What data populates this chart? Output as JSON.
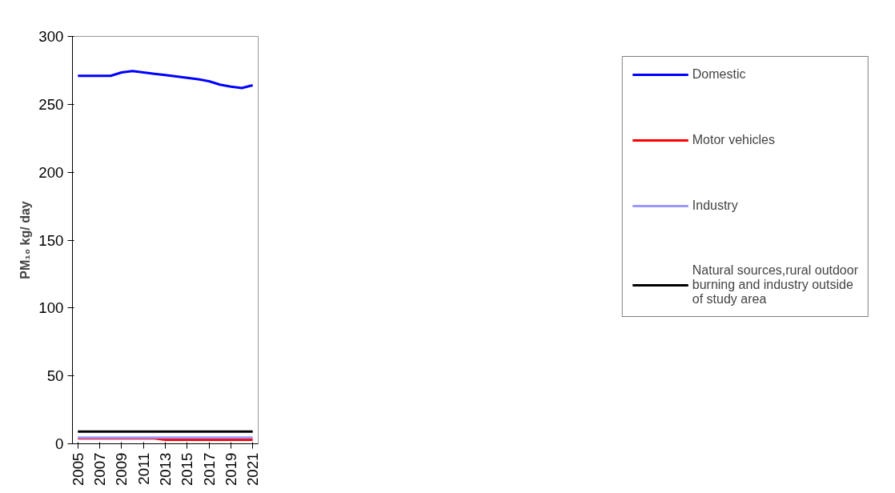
{
  "chart_data": {
    "type": "line",
    "ylabel": "PM₁₀ kg/ day",
    "categories": [
      "2005",
      null,
      "2007",
      null,
      "2009",
      null,
      "2011",
      null,
      "2013",
      null,
      "2015",
      null,
      "2017",
      null,
      "2019",
      null,
      "2021"
    ],
    "series": [
      {
        "name": "Domestic",
        "color": "#0000ff",
        "values": [
          271,
          271,
          271,
          271,
          273.5,
          274.5,
          273.5,
          272.5,
          271.5,
          270.5,
          269.5,
          268.5,
          267,
          264.5,
          263,
          262,
          264
        ]
      },
      {
        "name": "Motor vehicles",
        "color": "#ff0000",
        "values": [
          4,
          4,
          4,
          4,
          4,
          4,
          4,
          4,
          3,
          3,
          3,
          3,
          3,
          3,
          3,
          3,
          3
        ]
      },
      {
        "name": "Industry",
        "color": "#9999ff",
        "values": [
          4.5,
          4.5,
          4.5,
          4.5,
          4.5,
          4.5,
          4.5,
          4.5,
          4.5,
          4.5,
          4.5,
          4.5,
          4.5,
          4.5,
          4.5,
          4.5,
          4.5
        ]
      },
      {
        "name": "Natural sources,rural outdoor burning and industry outside of study area",
        "color": "#000000",
        "values": [
          9,
          9,
          9,
          9,
          9,
          9,
          9,
          9,
          9,
          9,
          9,
          9,
          9,
          9,
          9,
          9,
          9
        ]
      }
    ],
    "ylim": [
      0,
      300
    ],
    "yticks": [
      0,
      50,
      100,
      150,
      200,
      250,
      300
    ],
    "grid": false,
    "legend": "right",
    "marker": "none",
    "line_style": "solid"
  }
}
